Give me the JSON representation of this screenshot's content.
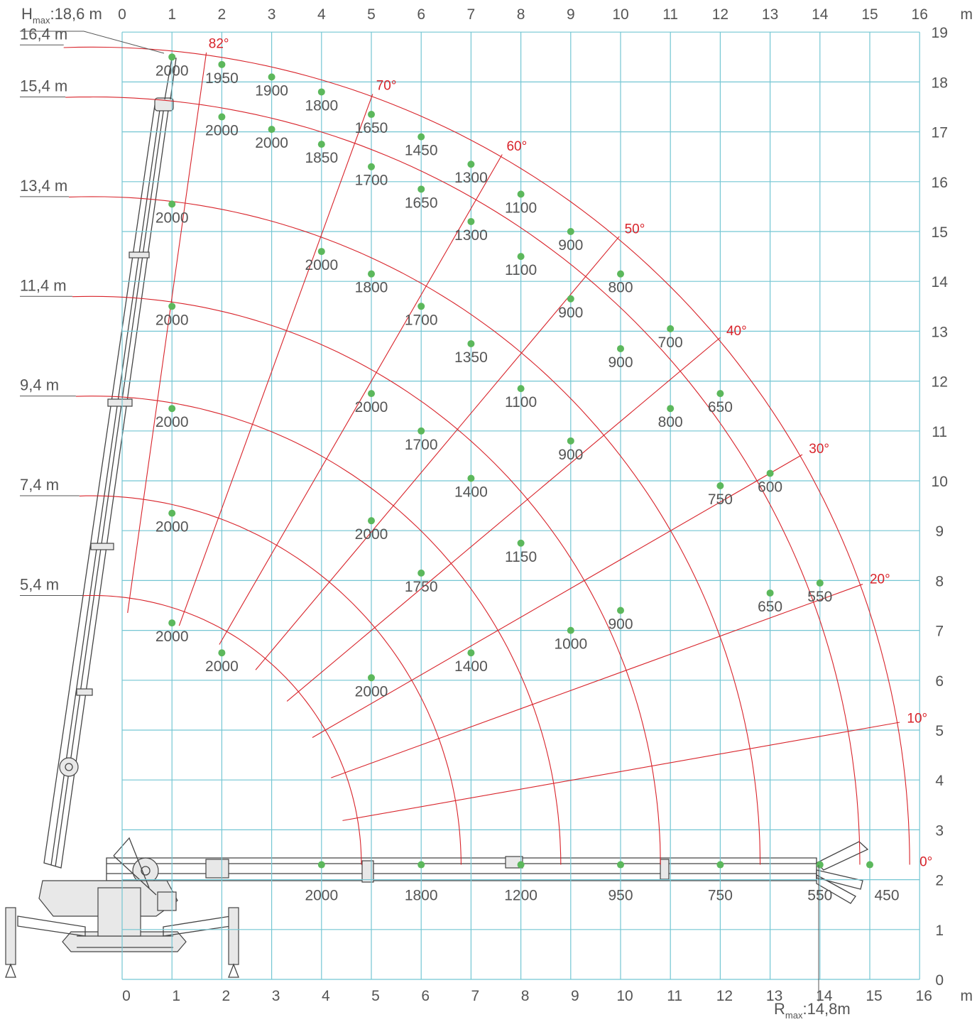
{
  "chart_data": {
    "type": "scatter",
    "title": "",
    "xlabel": "m",
    "ylabel": "m",
    "xlim": [
      0,
      16
    ],
    "ylim": [
      0,
      19
    ],
    "x_ticks": [
      "0",
      "1",
      "2",
      "3",
      "4",
      "5",
      "6",
      "7",
      "8",
      "9",
      "10",
      "11",
      "12",
      "13",
      "14",
      "15",
      "16"
    ],
    "y_ticks": [
      "0",
      "1",
      "2",
      "3",
      "4",
      "5",
      "6",
      "7",
      "8",
      "9",
      "10",
      "11",
      "12",
      "13",
      "14",
      "15",
      "16",
      "17",
      "18",
      "19"
    ],
    "unit_label": "m",
    "grid": true,
    "h_max_prefix": "H",
    "h_max_sub": "max",
    "h_max_value": ":18,6 m",
    "r_max_prefix": "R",
    "r_max_sub": "max",
    "r_max_value": ":14,8m",
    "pivot": {
      "x": -0.6,
      "y": 2.3
    },
    "series": [
      {
        "name": "16,4 m",
        "boom_length": 16.4,
        "points": [
          {
            "x": 1,
            "y": 18.5,
            "label": "2000"
          },
          {
            "x": 2,
            "y": 18.35,
            "label": "1950"
          },
          {
            "x": 3,
            "y": 18.1,
            "label": "1900"
          },
          {
            "x": 4,
            "y": 17.8,
            "label": "1800"
          },
          {
            "x": 5,
            "y": 17.35,
            "label": "1650"
          },
          {
            "x": 6,
            "y": 16.9,
            "label": "1450"
          },
          {
            "x": 7,
            "y": 16.35,
            "label": "1300"
          },
          {
            "x": 8,
            "y": 15.75,
            "label": "1100"
          },
          {
            "x": 9,
            "y": 15.0,
            "label": "900"
          },
          {
            "x": 10,
            "y": 14.15,
            "label": "800"
          },
          {
            "x": 11,
            "y": 13.05,
            "label": "700"
          },
          {
            "x": 12,
            "y": 11.75,
            "label": "650"
          },
          {
            "x": 13,
            "y": 10.15,
            "label": "600"
          },
          {
            "x": 14,
            "y": 7.95,
            "label": "550"
          },
          {
            "x": 15,
            "y": 2.3,
            "label": "450"
          }
        ]
      },
      {
        "name": "15,4 m",
        "boom_length": 15.4,
        "points": [
          {
            "x": 2,
            "y": 17.3,
            "label": "2000"
          },
          {
            "x": 3,
            "y": 17.05,
            "label": "2000"
          },
          {
            "x": 4,
            "y": 16.75,
            "label": "1850"
          },
          {
            "x": 5,
            "y": 16.3,
            "label": "1700"
          },
          {
            "x": 6,
            "y": 15.85,
            "label": "1650"
          },
          {
            "x": 7,
            "y": 15.2,
            "label": "1300"
          },
          {
            "x": 8,
            "y": 14.5,
            "label": "1100"
          },
          {
            "x": 9,
            "y": 13.65,
            "label": "900"
          },
          {
            "x": 10,
            "y": 12.65,
            "label": "900"
          },
          {
            "x": 11,
            "y": 11.45,
            "label": "800"
          },
          {
            "x": 12,
            "y": 9.9,
            "label": "750"
          },
          {
            "x": 13,
            "y": 7.75,
            "label": "650"
          },
          {
            "x": 14,
            "y": 2.3,
            "label": "550"
          }
        ]
      },
      {
        "name": "13,4 m",
        "boom_length": 13.4,
        "points": [
          {
            "x": 1,
            "y": 15.55,
            "label": "2000"
          },
          {
            "x": 4,
            "y": 14.6,
            "label": "2000"
          },
          {
            "x": 5,
            "y": 14.15,
            "label": "1800"
          },
          {
            "x": 6,
            "y": 13.5,
            "label": "1700"
          },
          {
            "x": 7,
            "y": 12.75,
            "label": "1350"
          },
          {
            "x": 8,
            "y": 11.85,
            "label": "1100"
          },
          {
            "x": 9,
            "y": 10.8,
            "label": "900"
          },
          {
            "x": 10,
            "y": 7.4,
            "label": "900"
          },
          {
            "x": 12,
            "y": 2.3,
            "label": "750"
          }
        ]
      },
      {
        "name": "11,4 m",
        "boom_length": 11.4,
        "points": [
          {
            "x": 1,
            "y": 13.5,
            "label": "2000"
          },
          {
            "x": 5,
            "y": 11.75,
            "label": "2000"
          },
          {
            "x": 6,
            "y": 11.0,
            "label": "1700"
          },
          {
            "x": 7,
            "y": 10.05,
            "label": "1400"
          },
          {
            "x": 8,
            "y": 8.75,
            "label": "1150"
          },
          {
            "x": 9,
            "y": 7.0,
            "label": "1000"
          },
          {
            "x": 10,
            "y": 2.3,
            "label": "950"
          }
        ]
      },
      {
        "name": "9,4 m",
        "boom_length": 9.4,
        "points": [
          {
            "x": 1,
            "y": 11.45,
            "label": "2000"
          },
          {
            "x": 5,
            "y": 9.2,
            "label": "2000"
          },
          {
            "x": 6,
            "y": 8.15,
            "label": "1750"
          },
          {
            "x": 7,
            "y": 6.55,
            "label": "1400"
          },
          {
            "x": 8,
            "y": 2.3,
            "label": "1200"
          }
        ]
      },
      {
        "name": "7,4 m",
        "boom_length": 7.4,
        "points": [
          {
            "x": 1,
            "y": 9.35,
            "label": "2000"
          },
          {
            "x": 5,
            "y": 6.05,
            "label": "2000"
          },
          {
            "x": 6,
            "y": 2.3,
            "label": "1800"
          }
        ]
      },
      {
        "name": "5,4 m",
        "boom_length": 5.4,
        "points": [
          {
            "x": 1,
            "y": 7.15,
            "label": "2000"
          },
          {
            "x": 2,
            "y": 6.55,
            "label": "2000"
          },
          {
            "x": 4,
            "y": 2.3,
            "label": "2000"
          }
        ]
      }
    ],
    "angle_lines": [
      {
        "label": "82°",
        "deg": 82
      },
      {
        "label": "70°",
        "deg": 70
      },
      {
        "label": "60°",
        "deg": 60
      },
      {
        "label": "50°",
        "deg": 50
      },
      {
        "label": "40°",
        "deg": 40
      },
      {
        "label": "30°",
        "deg": 30
      },
      {
        "label": "20°",
        "deg": 20
      },
      {
        "label": "10°",
        "deg": 10
      },
      {
        "label": "0°",
        "deg": 0
      }
    ],
    "colors": {
      "grid": "#74c6d3",
      "curves": "#d8232a",
      "points": "#5cb85c",
      "text": "#555555",
      "angle_labels": "#d8232a"
    }
  }
}
